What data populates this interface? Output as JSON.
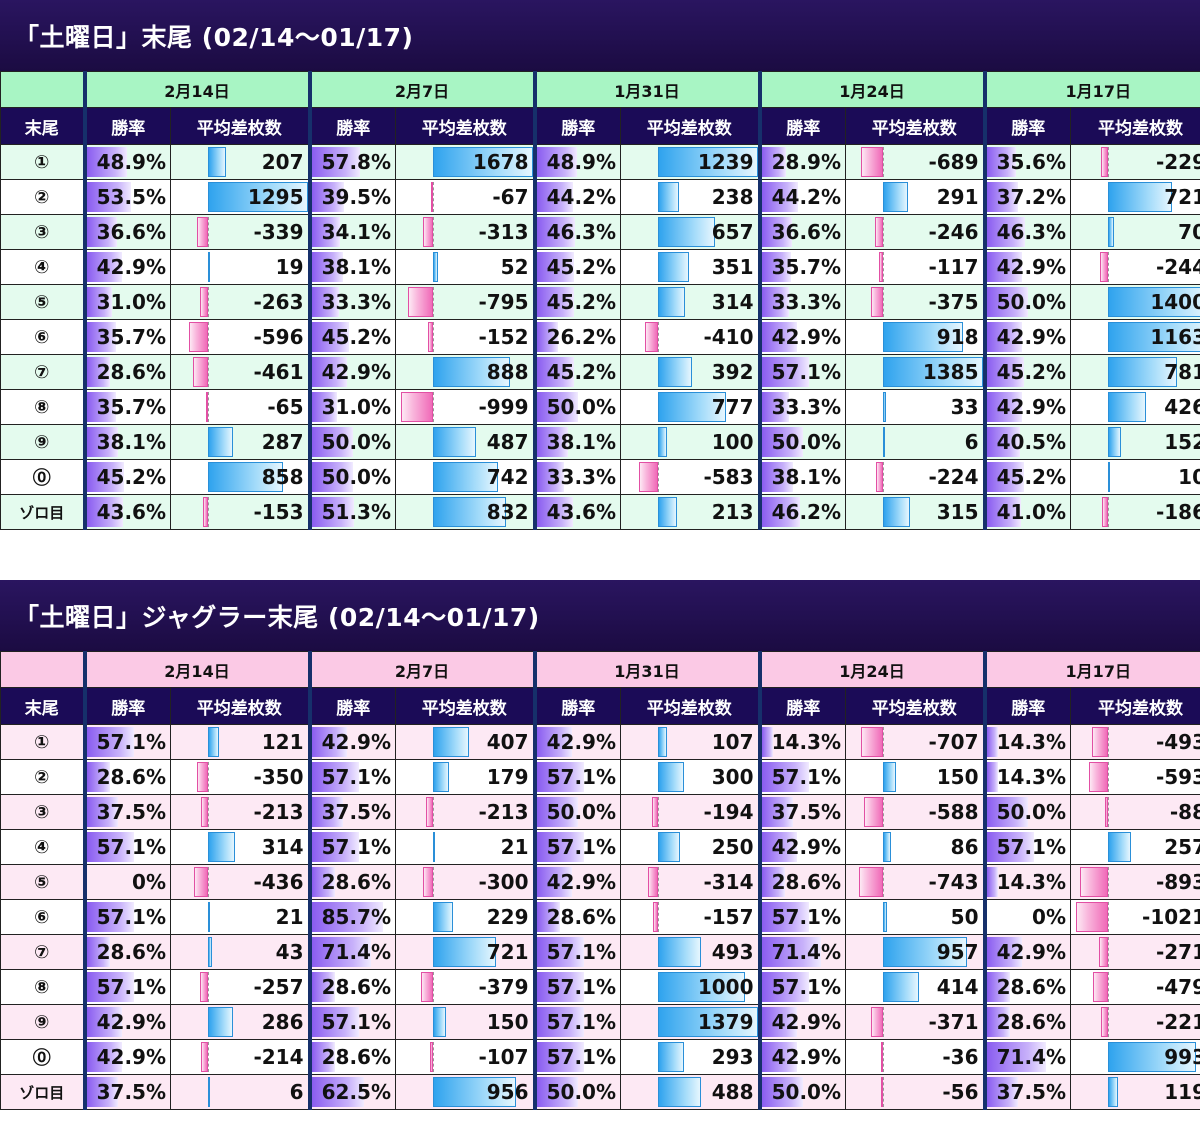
{
  "colors": {
    "title_bg": "#1b0b42",
    "header_bg": "#1b0b57",
    "green_date": "#a8f5c4",
    "green_row": "#e4fbee",
    "pink_date": "#fbc9e5",
    "pink_row": "#fde9f4",
    "rate_bar": "#8a5cf0",
    "plus_bar": "#2fa3ee",
    "minus_bar": "#f06ab8"
  },
  "headers": {
    "sue": "末尾",
    "rate": "勝率",
    "diff": "平均差枚数"
  },
  "tables": [
    {
      "title": "「土曜日」末尾 (02/14〜01/17)",
      "theme": "green",
      "dates": [
        "2月14日",
        "2月7日",
        "1月31日",
        "1月24日",
        "1月17日"
      ],
      "rows": [
        {
          "label": "①",
          "cells": [
            [
              "48.9%",
              "207"
            ],
            [
              "57.8%",
              "1678"
            ],
            [
              "48.9%",
              "1239"
            ],
            [
              "28.9%",
              "-689"
            ],
            [
              "35.6%",
              "-229"
            ]
          ]
        },
        {
          "label": "②",
          "cells": [
            [
              "53.5%",
              "1295"
            ],
            [
              "39.5%",
              "-67"
            ],
            [
              "44.2%",
              "238"
            ],
            [
              "44.2%",
              "291"
            ],
            [
              "37.2%",
              "721"
            ]
          ]
        },
        {
          "label": "③",
          "cells": [
            [
              "36.6%",
              "-339"
            ],
            [
              "34.1%",
              "-313"
            ],
            [
              "46.3%",
              "657"
            ],
            [
              "36.6%",
              "-246"
            ],
            [
              "46.3%",
              "70"
            ]
          ]
        },
        {
          "label": "④",
          "cells": [
            [
              "42.9%",
              "19"
            ],
            [
              "38.1%",
              "52"
            ],
            [
              "45.2%",
              "351"
            ],
            [
              "35.7%",
              "-117"
            ],
            [
              "42.9%",
              "-244"
            ]
          ]
        },
        {
          "label": "⑤",
          "cells": [
            [
              "31.0%",
              "-263"
            ],
            [
              "33.3%",
              "-795"
            ],
            [
              "45.2%",
              "314"
            ],
            [
              "33.3%",
              "-375"
            ],
            [
              "50.0%",
              "1400"
            ]
          ]
        },
        {
          "label": "⑥",
          "cells": [
            [
              "35.7%",
              "-596"
            ],
            [
              "45.2%",
              "-152"
            ],
            [
              "26.2%",
              "-410"
            ],
            [
              "42.9%",
              "918"
            ],
            [
              "42.9%",
              "1163"
            ]
          ]
        },
        {
          "label": "⑦",
          "cells": [
            [
              "28.6%",
              "-461"
            ],
            [
              "42.9%",
              "888"
            ],
            [
              "45.2%",
              "392"
            ],
            [
              "57.1%",
              "1385"
            ],
            [
              "45.2%",
              "781"
            ]
          ]
        },
        {
          "label": "⑧",
          "cells": [
            [
              "35.7%",
              "-65"
            ],
            [
              "31.0%",
              "-999"
            ],
            [
              "50.0%",
              "777"
            ],
            [
              "33.3%",
              "33"
            ],
            [
              "42.9%",
              "426"
            ]
          ]
        },
        {
          "label": "⑨",
          "cells": [
            [
              "38.1%",
              "287"
            ],
            [
              "50.0%",
              "487"
            ],
            [
              "38.1%",
              "100"
            ],
            [
              "50.0%",
              "6"
            ],
            [
              "40.5%",
              "152"
            ]
          ]
        },
        {
          "label": "⓪",
          "cells": [
            [
              "45.2%",
              "858"
            ],
            [
              "50.0%",
              "742"
            ],
            [
              "33.3%",
              "-583"
            ],
            [
              "38.1%",
              "-224"
            ],
            [
              "45.2%",
              "10"
            ]
          ]
        },
        {
          "label": "ゾロ目",
          "cells": [
            [
              "43.6%",
              "-153"
            ],
            [
              "51.3%",
              "832"
            ],
            [
              "43.6%",
              "213"
            ],
            [
              "46.2%",
              "315"
            ],
            [
              "41.0%",
              "-186"
            ]
          ]
        }
      ]
    },
    {
      "title": "「土曜日」ジャグラー末尾 (02/14〜01/17)",
      "theme": "pink",
      "dates": [
        "2月14日",
        "2月7日",
        "1月31日",
        "1月24日",
        "1月17日"
      ],
      "rows": [
        {
          "label": "①",
          "cells": [
            [
              "57.1%",
              "121"
            ],
            [
              "42.9%",
              "407"
            ],
            [
              "42.9%",
              "107"
            ],
            [
              "14.3%",
              "-707"
            ],
            [
              "14.3%",
              "-493"
            ]
          ]
        },
        {
          "label": "②",
          "cells": [
            [
              "28.6%",
              "-350"
            ],
            [
              "57.1%",
              "179"
            ],
            [
              "57.1%",
              "300"
            ],
            [
              "57.1%",
              "150"
            ],
            [
              "14.3%",
              "-593"
            ]
          ]
        },
        {
          "label": "③",
          "cells": [
            [
              "37.5%",
              "-213"
            ],
            [
              "37.5%",
              "-213"
            ],
            [
              "50.0%",
              "-194"
            ],
            [
              "37.5%",
              "-588"
            ],
            [
              "50.0%",
              "-88"
            ]
          ]
        },
        {
          "label": "④",
          "cells": [
            [
              "57.1%",
              "314"
            ],
            [
              "57.1%",
              "21"
            ],
            [
              "57.1%",
              "250"
            ],
            [
              "42.9%",
              "86"
            ],
            [
              "57.1%",
              "257"
            ]
          ]
        },
        {
          "label": "⑤",
          "cells": [
            [
              "0%",
              "-436"
            ],
            [
              "28.6%",
              "-300"
            ],
            [
              "42.9%",
              "-314"
            ],
            [
              "28.6%",
              "-743"
            ],
            [
              "14.3%",
              "-893"
            ]
          ]
        },
        {
          "label": "⑥",
          "cells": [
            [
              "57.1%",
              "21"
            ],
            [
              "85.7%",
              "229"
            ],
            [
              "28.6%",
              "-157"
            ],
            [
              "57.1%",
              "50"
            ],
            [
              "0%",
              "-1021"
            ]
          ]
        },
        {
          "label": "⑦",
          "cells": [
            [
              "28.6%",
              "43"
            ],
            [
              "71.4%",
              "721"
            ],
            [
              "57.1%",
              "493"
            ],
            [
              "71.4%",
              "957"
            ],
            [
              "42.9%",
              "-271"
            ]
          ]
        },
        {
          "label": "⑧",
          "cells": [
            [
              "57.1%",
              "-257"
            ],
            [
              "28.6%",
              "-379"
            ],
            [
              "57.1%",
              "1000"
            ],
            [
              "57.1%",
              "414"
            ],
            [
              "28.6%",
              "-479"
            ]
          ]
        },
        {
          "label": "⑨",
          "cells": [
            [
              "42.9%",
              "286"
            ],
            [
              "57.1%",
              "150"
            ],
            [
              "57.1%",
              "1379"
            ],
            [
              "42.9%",
              "-371"
            ],
            [
              "28.6%",
              "-221"
            ]
          ]
        },
        {
          "label": "⓪",
          "cells": [
            [
              "42.9%",
              "-214"
            ],
            [
              "28.6%",
              "-107"
            ],
            [
              "57.1%",
              "293"
            ],
            [
              "42.9%",
              "-36"
            ],
            [
              "71.4%",
              "993"
            ]
          ]
        },
        {
          "label": "ゾロ目",
          "cells": [
            [
              "37.5%",
              "6"
            ],
            [
              "62.5%",
              "956"
            ],
            [
              "50.0%",
              "488"
            ],
            [
              "50.0%",
              "-56"
            ],
            [
              "37.5%",
              "119"
            ]
          ]
        }
      ]
    }
  ]
}
